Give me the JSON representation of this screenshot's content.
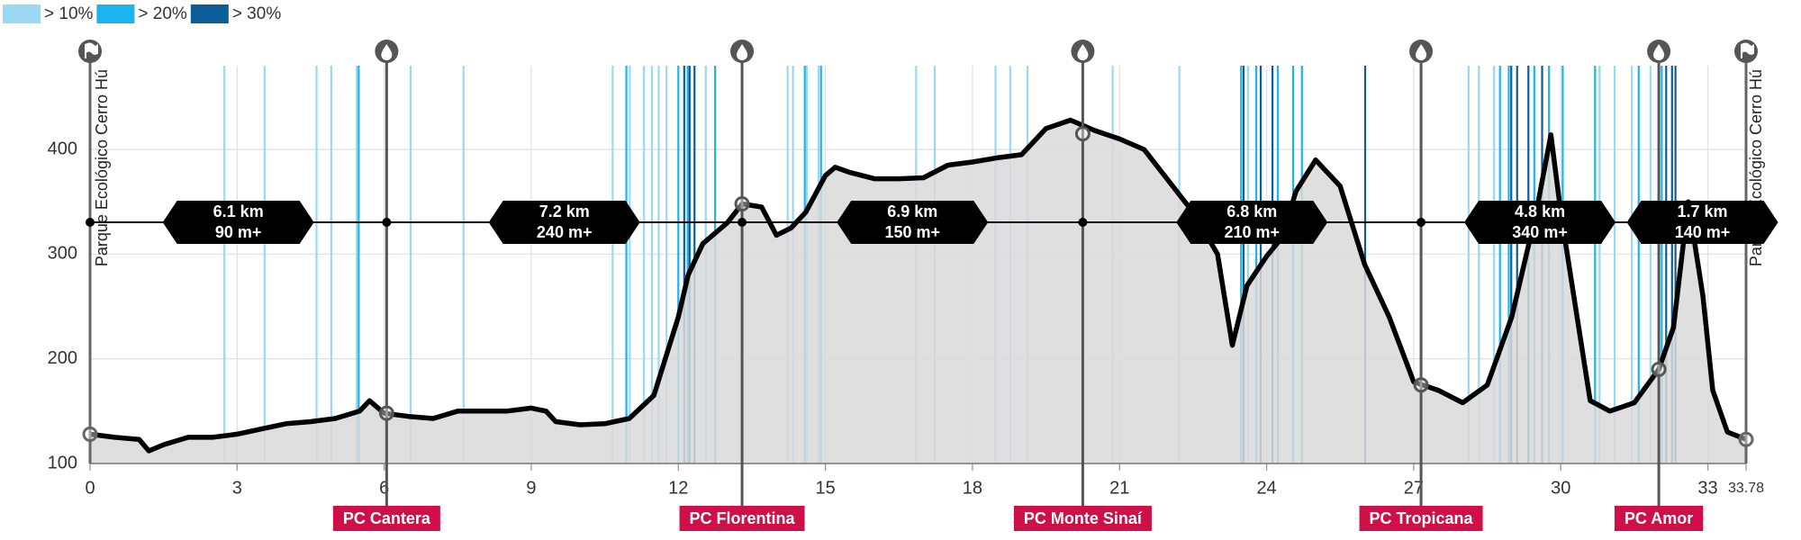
{
  "chart_data": {
    "type": "elevation-profile",
    "fill_color": "#d9d9d9",
    "line_color": "#000000",
    "x": [
      0,
      0.5,
      1,
      1.2,
      1.5,
      2,
      2.5,
      3,
      3.5,
      4,
      4.5,
      5,
      5.5,
      5.7,
      6,
      6.5,
      7,
      7.5,
      8,
      8.5,
      9,
      9.3,
      9.5,
      10,
      10.5,
      11,
      11.5,
      11.8,
      12,
      12.2,
      12.5,
      13,
      13.3,
      13.7,
      14,
      14.3,
      14.6,
      15,
      15.2,
      15.5,
      16,
      16.5,
      17,
      17.5,
      18,
      18.5,
      19,
      19.5,
      20,
      20.5,
      21,
      21.5,
      22,
      22.5,
      23,
      23.3,
      23.6,
      24,
      24.3,
      24.6,
      25,
      25.5,
      26,
      26.5,
      27,
      27.5,
      28,
      28.5,
      29,
      29.5,
      29.8,
      30,
      30.3,
      30.6,
      31,
      31.5,
      32,
      32.3,
      32.6,
      32.9,
      33.1,
      33.4,
      33.78
    ],
    "values": [
      128,
      125,
      123,
      112,
      118,
      125,
      125,
      128,
      133,
      138,
      140,
      143,
      150,
      160,
      148,
      145,
      143,
      150,
      150,
      150,
      153,
      150,
      140,
      137,
      138,
      143,
      165,
      210,
      240,
      280,
      310,
      330,
      348,
      345,
      318,
      325,
      340,
      375,
      383,
      378,
      372,
      372,
      373,
      385,
      388,
      392,
      395,
      420,
      428,
      418,
      410,
      400,
      370,
      340,
      300,
      213,
      270,
      298,
      315,
      360,
      390,
      365,
      290,
      240,
      178,
      170,
      158,
      175,
      240,
      340,
      414,
      340,
      250,
      160,
      150,
      158,
      190,
      230,
      350,
      260,
      170,
      130,
      123
    ],
    "xlim": [
      0,
      33.78
    ],
    "ylim": [
      100,
      480
    ],
    "xticks": [
      0,
      3,
      6,
      9,
      12,
      15,
      18,
      21,
      24,
      27,
      30,
      33,
      33.78
    ],
    "yticks": [
      100,
      200,
      300,
      400
    ],
    "grid": true,
    "slope_bands": [
      {
        "name": "> 10%",
        "color": "#9bd9f3",
        "x": [
          2.74,
          3.56,
          4.62,
          4.92,
          5.44,
          6.54,
          7.62,
          10.66,
          11.01,
          11.3,
          11.46,
          11.6,
          11.76,
          12.56,
          14.23,
          14.34,
          14.62,
          14.86,
          16.85,
          17.23,
          18.47,
          18.77,
          19.12,
          20.86,
          22.22,
          23.62,
          28.12,
          28.33,
          28.64,
          30.79,
          31.1,
          31.45,
          31.83
        ]
      },
      {
        "name": "> 20%",
        "color": "#1cb4ec",
        "x": [
          5.48,
          10.94,
          12.0,
          12.19,
          12.75,
          14.58,
          14.91,
          23.48,
          23.79,
          24.23,
          24.54,
          24.72,
          28.76,
          28.94,
          29.46,
          29.76,
          30.04,
          30.7,
          31.59,
          32.06
        ]
      },
      {
        "name": "> 30%",
        "color": "#0b5d9a",
        "x": [
          12.12,
          12.23,
          12.33,
          23.53,
          23.88,
          24.12,
          26.01,
          28.99,
          29.11,
          29.34,
          29.62,
          32.15,
          32.27,
          32.34
        ]
      }
    ],
    "endpoints": [
      {
        "label": "Parque Ecológico Cerro Hú",
        "x": 0,
        "elevation": 128
      },
      {
        "label": "Parque Ecológico Cerro Hú",
        "x": 33.78,
        "elevation": 123
      }
    ],
    "checkpoints": [
      {
        "label": "PC Cantera",
        "x": 6.05,
        "elevation": 148
      },
      {
        "label": "PC Florentina",
        "x": 13.3,
        "elevation": 348
      },
      {
        "label": "PC Monte Sinaí",
        "x": 20.25,
        "elevation": 415
      },
      {
        "label": "PC Tropicana",
        "x": 27.15,
        "elevation": 175
      },
      {
        "label": "PC Amor",
        "x": 32.0,
        "elevation": 190
      }
    ],
    "segments": [
      {
        "distance": "6.1 km",
        "gain": "90 m+"
      },
      {
        "distance": "7.2 km",
        "gain": "240 m+"
      },
      {
        "distance": "6.9 km",
        "gain": "150 m+"
      },
      {
        "distance": "6.8 km",
        "gain": "210 m+"
      },
      {
        "distance": "4.8 km",
        "gain": "340 m+"
      },
      {
        "distance": "1.7 km",
        "gain": "140 m+"
      }
    ]
  }
}
